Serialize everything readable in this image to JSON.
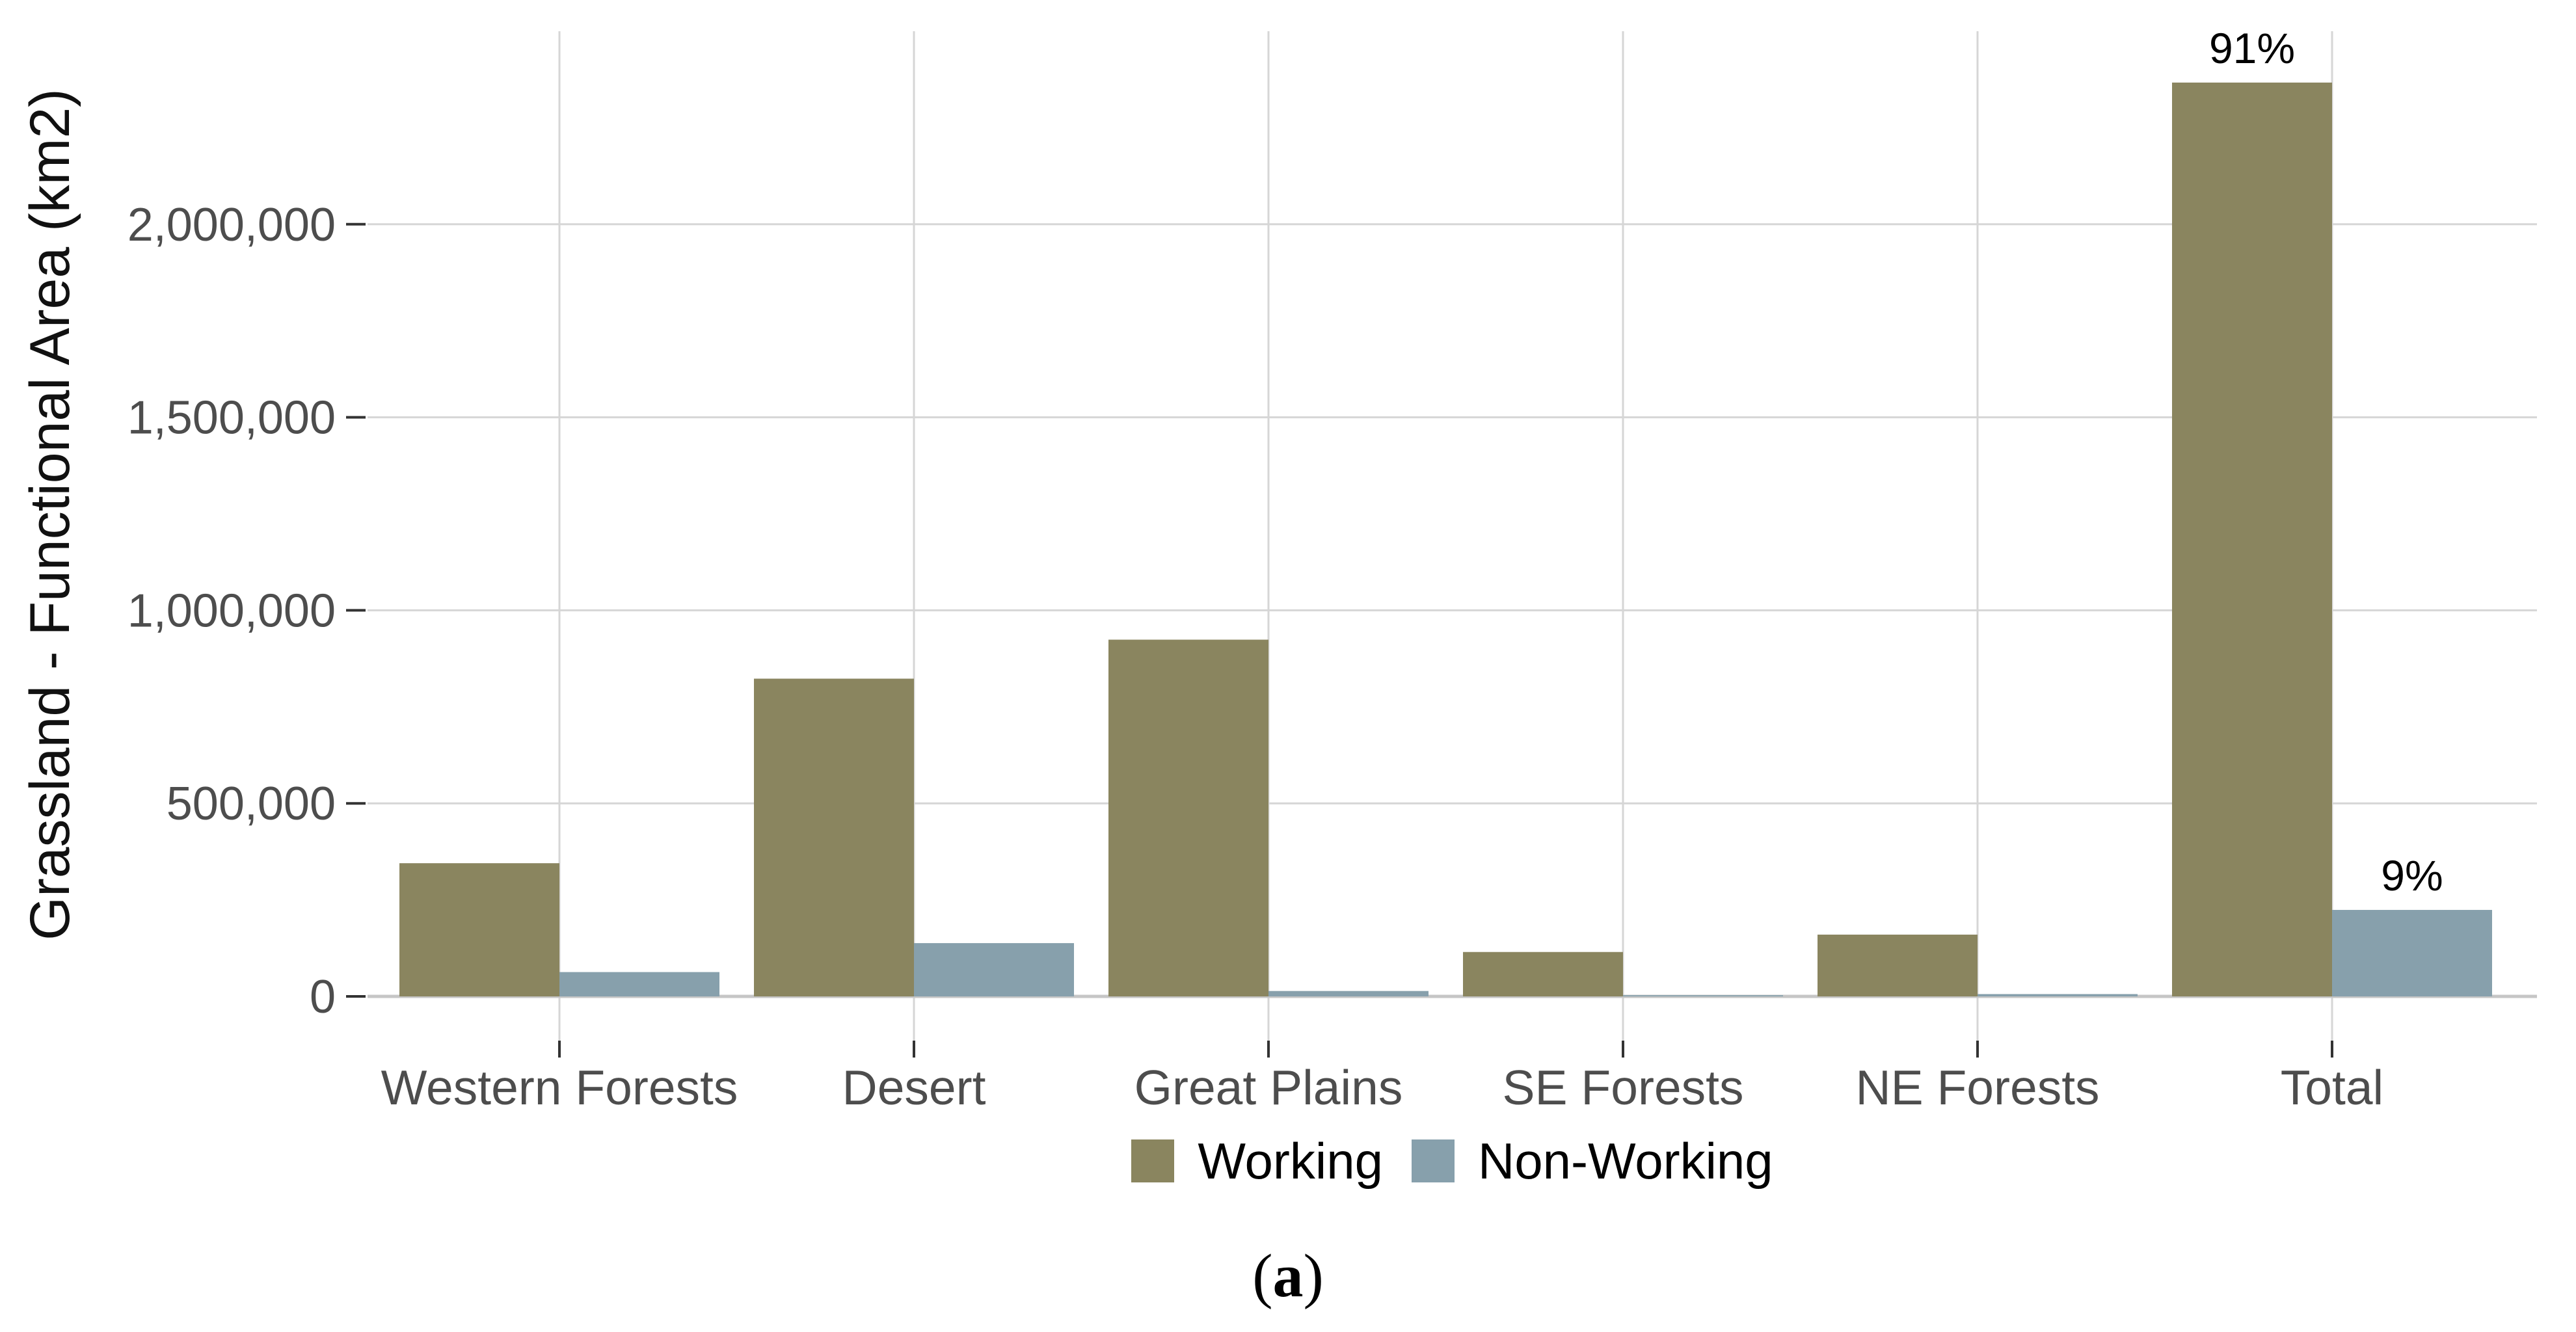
{
  "figure": {
    "caption_prefix": "(",
    "caption_letter": "a",
    "caption_suffix": ")"
  },
  "chart_data": {
    "type": "bar",
    "title": "",
    "xlabel": "",
    "ylabel": "Grassland - Functional Area (km2)",
    "categories": [
      "Western Forests",
      "Desert",
      "Great Plains",
      "SE Forests",
      "NE Forests",
      "Total"
    ],
    "series": [
      {
        "name": "Working",
        "color": "#8A855F",
        "values": [
          345000,
          823000,
          924000,
          115000,
          160000,
          2367000
        ]
      },
      {
        "name": "Non-Working",
        "color": "#87A0AC",
        "values": [
          63000,
          138000,
          14000,
          3000,
          6000,
          224000
        ]
      }
    ],
    "bar_labels": [
      {
        "series_index": 0,
        "category_index": 5,
        "text": "91%"
      },
      {
        "series_index": 1,
        "category_index": 5,
        "text": "9%"
      }
    ],
    "yticks": [
      0,
      500000,
      1000000,
      1500000,
      2000000
    ],
    "ytick_labels": [
      "0",
      "500,000",
      "1,000,000",
      "1,500,000",
      "2,000,000"
    ],
    "ylim": [
      0,
      2500000
    ],
    "grid": true,
    "legend_position": "bottom",
    "colors": {
      "grid_line": "#D6D6D6",
      "axis_line": "#C6C6C6",
      "tick_mark": "#333333",
      "tick_label": "#4D4D4D",
      "bar_label": "#000000"
    }
  }
}
